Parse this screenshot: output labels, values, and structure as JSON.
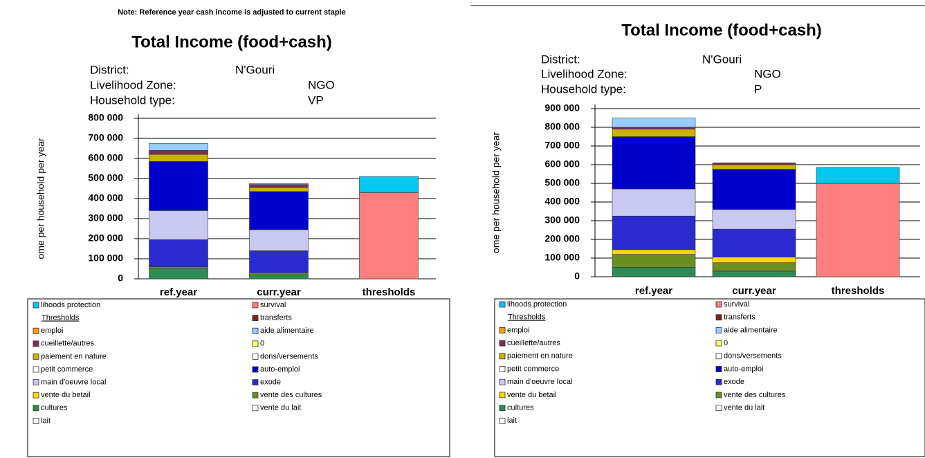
{
  "chart_data": [
    {
      "type": "bar",
      "stacked": true,
      "note": "Note: Reference year cash income is adjusted to current staple",
      "title": "Total Income (food+cash)",
      "info": [
        [
          "District:",
          "N'Gouri"
        ],
        [
          "Livelihood Zone:",
          "NGO"
        ],
        [
          "Household type:",
          "VP"
        ]
      ],
      "y_label": "ome per household per year",
      "legend_header": "Thresholds",
      "categories": [
        "ref.year",
        "curr.year",
        "thresholds"
      ],
      "ylim": [
        0,
        800000
      ],
      "yticks": [
        {
          "value": 0,
          "label": "0"
        },
        {
          "value": 100000,
          "label": "100 000"
        },
        {
          "value": 200000,
          "label": "200 000"
        },
        {
          "value": 300000,
          "label": "300 000"
        },
        {
          "value": 400000,
          "label": "400 000"
        },
        {
          "value": 500000,
          "label": "500 000"
        },
        {
          "value": 600000,
          "label": "600 000"
        },
        {
          "value": 700000,
          "label": "700 000"
        },
        {
          "value": 800000,
          "label": "800 000"
        }
      ],
      "grid": true,
      "series": [
        {
          "name": "lihoods protection",
          "color": "#00c8f0",
          "values": [
            0,
            0,
            80000
          ]
        },
        {
          "name": "survival",
          "color": "#ff7f7f",
          "values": [
            0,
            0,
            430000
          ]
        },
        {
          "name": "transferts",
          "color": "#8b1a1a",
          "values": [
            0,
            0,
            0
          ]
        },
        {
          "name": "emploi",
          "color": "#ff9900",
          "values": [
            0,
            0,
            0
          ]
        },
        {
          "name": "aide alimentaire",
          "color": "#99ccff",
          "values": [
            35000,
            5000,
            0
          ]
        },
        {
          "name": "cueillette/autres",
          "color": "#7b2d5a",
          "values": [
            20000,
            15000,
            0
          ]
        },
        {
          "name": "0",
          "color": "#ffff66",
          "values": [
            0,
            0,
            0
          ]
        },
        {
          "name": "paiement en nature",
          "color": "#c8b400",
          "values": [
            35000,
            20000,
            0
          ]
        },
        {
          "name": "dons/versements",
          "color": "#ffffff",
          "values": [
            0,
            0,
            0
          ]
        },
        {
          "name": "petit commerce",
          "color": "#ffffff",
          "values": [
            0,
            0,
            0
          ]
        },
        {
          "name": "auto-emploi",
          "color": "#0000cd",
          "values": [
            245000,
            190000,
            0
          ]
        },
        {
          "name": "main d'oeuvre local",
          "color": "#c8c8f0",
          "values": [
            145000,
            105000,
            0
          ]
        },
        {
          "name": "exode",
          "color": "#2a2ad0",
          "values": [
            135000,
            110000,
            0
          ]
        },
        {
          "name": "vente du betail",
          "color": "#ffd700",
          "values": [
            0,
            0,
            0
          ]
        },
        {
          "name": "vente des cultures",
          "color": "#6b8e23",
          "values": [
            10000,
            10000,
            0
          ]
        },
        {
          "name": "cultures",
          "color": "#2e8b57",
          "values": [
            50000,
            20000,
            0
          ]
        },
        {
          "name": "vente du lait",
          "color": "#ffffff",
          "values": [
            0,
            0,
            0
          ]
        },
        {
          "name": "lait",
          "color": "#ffffff",
          "values": [
            0,
            0,
            0
          ]
        }
      ]
    },
    {
      "type": "bar",
      "stacked": true,
      "title": "Total Income (food+cash)",
      "info": [
        [
          "District:",
          "N'Gouri"
        ],
        [
          "Livelihood Zone:",
          "NGO"
        ],
        [
          "Household type:",
          "P"
        ]
      ],
      "y_label": "ome per household per year",
      "legend_header": "Thresholds",
      "categories": [
        "ref.year",
        "curr.year",
        "thresholds"
      ],
      "ylim": [
        0,
        900000
      ],
      "yticks": [
        {
          "value": 0,
          "label": "0"
        },
        {
          "value": 100000,
          "label": "100 000"
        },
        {
          "value": 200000,
          "label": "200 000"
        },
        {
          "value": 300000,
          "label": "300 000"
        },
        {
          "value": 400000,
          "label": "400 000"
        },
        {
          "value": 500000,
          "label": "500 000"
        },
        {
          "value": 600000,
          "label": "600 000"
        },
        {
          "value": 700000,
          "label": "700 000"
        },
        {
          "value": 800000,
          "label": "800 000"
        },
        {
          "value": 900000,
          "label": "900 000"
        }
      ],
      "grid": true,
      "series": [
        {
          "name": "lihoods protection",
          "color": "#00c8f0",
          "values": [
            0,
            0,
            85000
          ]
        },
        {
          "name": "survival",
          "color": "#ff7f7f",
          "values": [
            0,
            0,
            500000
          ]
        },
        {
          "name": "transferts",
          "color": "#8b1a1a",
          "values": [
            0,
            0,
            0
          ]
        },
        {
          "name": "emploi",
          "color": "#ff9900",
          "values": [
            0,
            0,
            0
          ]
        },
        {
          "name": "aide alimentaire",
          "color": "#99ccff",
          "values": [
            50000,
            0,
            0
          ]
        },
        {
          "name": "cueillette/autres",
          "color": "#7b2d5a",
          "values": [
            10000,
            10000,
            0
          ]
        },
        {
          "name": "0",
          "color": "#ffff66",
          "values": [
            0,
            0,
            0
          ]
        },
        {
          "name": "paiement en nature",
          "color": "#c8b400",
          "values": [
            40000,
            25000,
            0
          ]
        },
        {
          "name": "dons/versements",
          "color": "#ffffff",
          "values": [
            0,
            0,
            0
          ]
        },
        {
          "name": "petit commerce",
          "color": "#ffffff",
          "values": [
            0,
            0,
            0
          ]
        },
        {
          "name": "auto-emploi",
          "color": "#0000cd",
          "values": [
            280000,
            215000,
            0
          ]
        },
        {
          "name": "main d'oeuvre local",
          "color": "#c8c8f0",
          "values": [
            145000,
            105000,
            0
          ]
        },
        {
          "name": "exode",
          "color": "#2a2ad0",
          "values": [
            180000,
            150000,
            0
          ]
        },
        {
          "name": "vente du betail",
          "color": "#ffd700",
          "values": [
            25000,
            30000,
            0
          ]
        },
        {
          "name": "vente des cultures",
          "color": "#6b8e23",
          "values": [
            70000,
            45000,
            0
          ]
        },
        {
          "name": "cultures",
          "color": "#2e8b57",
          "values": [
            50000,
            30000,
            0
          ]
        },
        {
          "name": "vente du lait",
          "color": "#ffffff",
          "values": [
            0,
            0,
            0
          ]
        },
        {
          "name": "lait",
          "color": "#ffffff",
          "values": [
            0,
            0,
            0
          ]
        }
      ]
    }
  ]
}
